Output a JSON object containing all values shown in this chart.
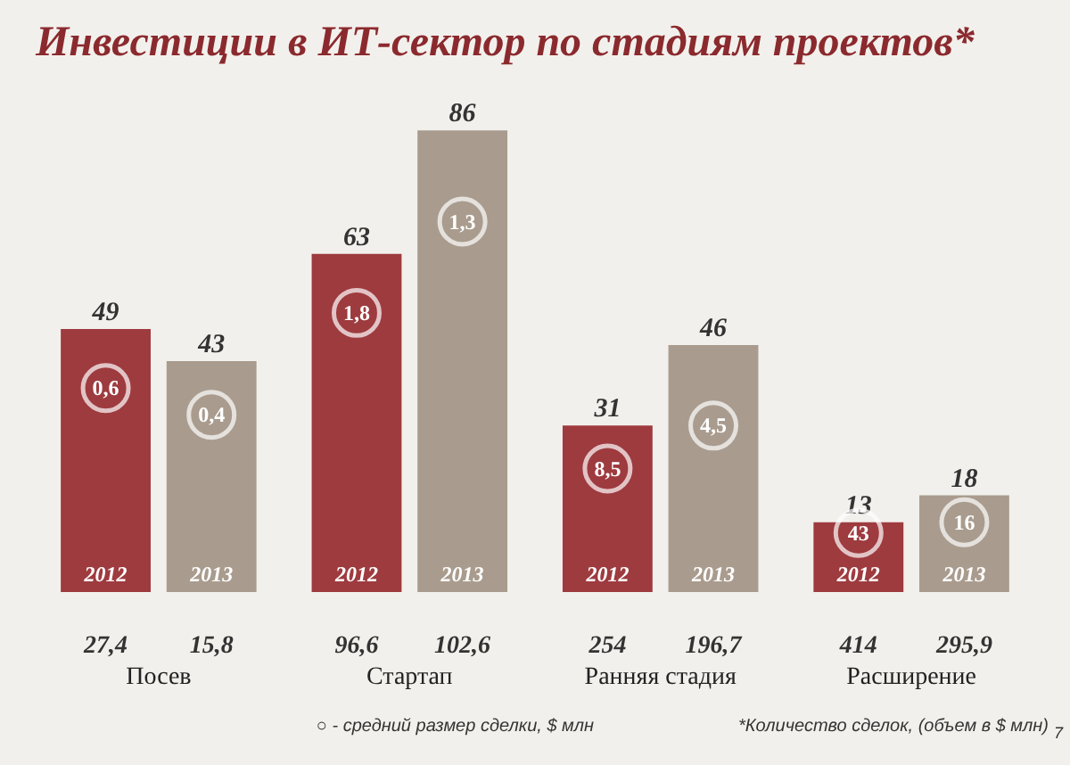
{
  "chart_data": {
    "type": "bar",
    "title": "Инвестиции в ИТ-сектор по стадиям проектов*",
    "categories": [
      "Посев",
      "Стартап",
      "Ранняя стадия",
      "Расширение"
    ],
    "series": [
      {
        "name": "2012",
        "color": "#9e3b3f",
        "values": [
          49,
          63,
          31,
          13
        ]
      },
      {
        "name": "2013",
        "color": "#a99c8e",
        "values": [
          43,
          86,
          46,
          18
        ]
      }
    ],
    "data_labels": true,
    "legend": false,
    "grid": false,
    "annotations": [
      {
        "text": "0,6",
        "x": "Посев",
        "y": 38
      },
      {
        "text": "0,4",
        "x": "Посев",
        "y": 33
      },
      {
        "text": "1,8",
        "x": "Стартап",
        "y": 52
      },
      {
        "text": "1,3",
        "x": "Стартап",
        "y": 69
      },
      {
        "text": "8,5",
        "x": "Ранняя стадия",
        "y": 23
      },
      {
        "text": "4,5",
        "x": "Ранняя стадия",
        "y": 31
      },
      {
        "text": "43",
        "x": "Расширение",
        "y": 11
      },
      {
        "text": "16",
        "x": "Расширение",
        "y": 13
      },
      "27,4",
      "15,8",
      "96,6",
      "102,6",
      "254",
      "196,7",
      "414",
      "295,9",
      "○ - средний размер сделки, $ млн",
      "*Количество сделок, (объем в $ млн)",
      "7"
    ]
  }
}
